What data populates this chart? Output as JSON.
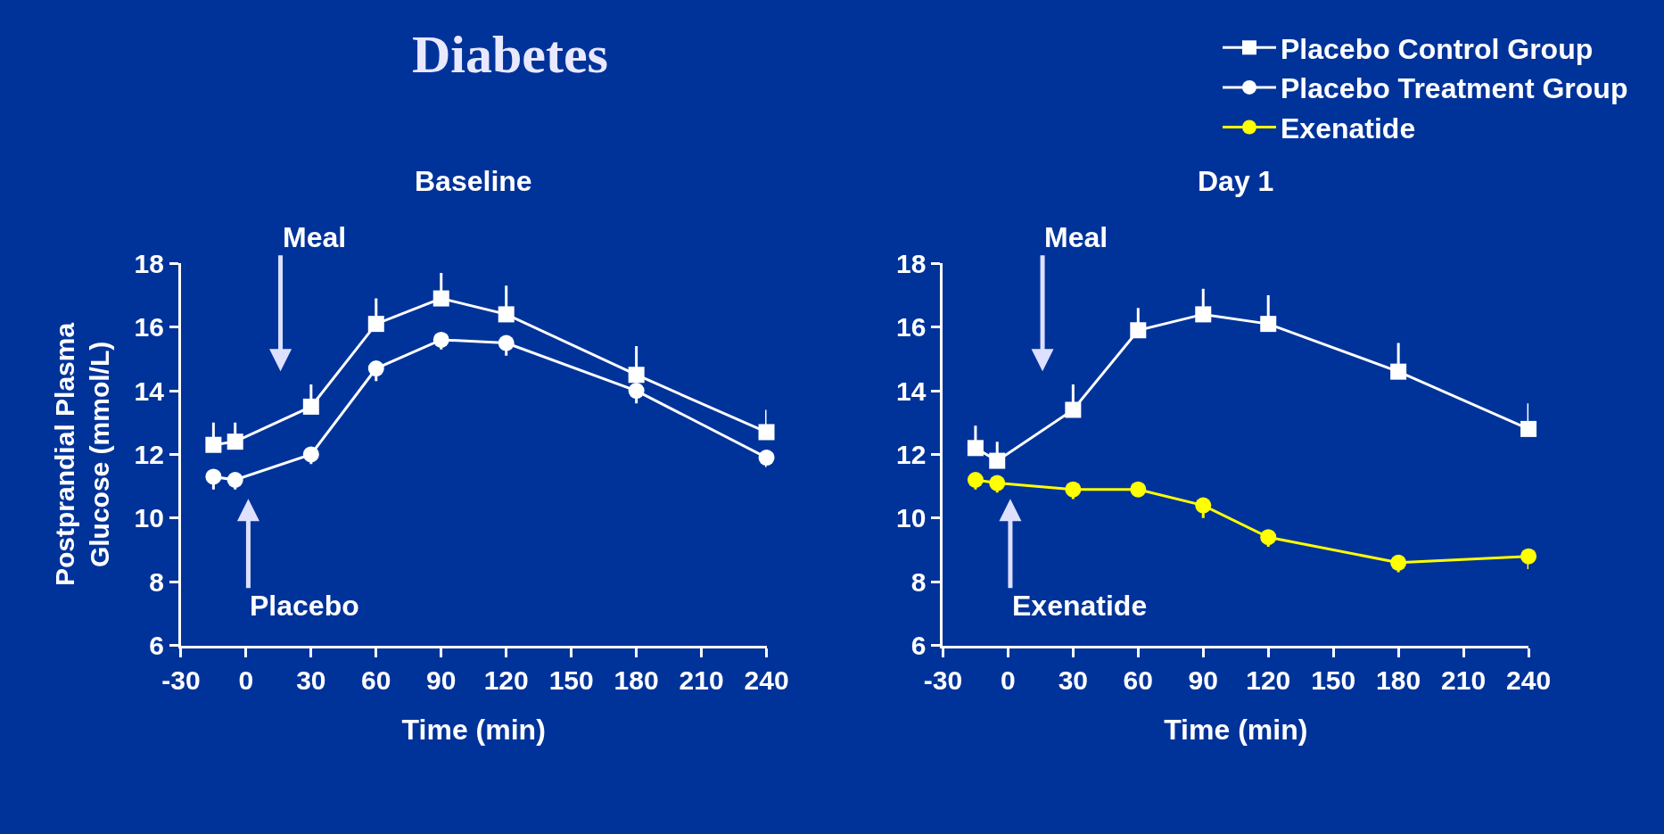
{
  "chart_data": [
    {
      "type": "line",
      "title": "Baseline",
      "xlabel": "Time (min)",
      "ylabel": "Postprandial Plasma\nGlucose (mmol/L)",
      "x": [
        -15,
        -5,
        30,
        60,
        90,
        120,
        180,
        240
      ],
      "xlim": [
        -30,
        240
      ],
      "xticks": [
        -30,
        0,
        30,
        60,
        90,
        120,
        150,
        180,
        210,
        240
      ],
      "ylim": [
        6,
        18
      ],
      "yticks": [
        6,
        8,
        10,
        12,
        14,
        16,
        18
      ],
      "grid": false,
      "legend": "top right",
      "series": [
        {
          "name": "Placebo Control Group",
          "color": "#ffffff",
          "marker": "square",
          "values": [
            12.3,
            12.4,
            13.5,
            16.1,
            16.9,
            16.4,
            14.5,
            12.7
          ],
          "errors": [
            [
              12.3,
              13.0
            ],
            [
              12.4,
              13.0
            ],
            [
              13.5,
              14.2
            ],
            [
              16.1,
              16.9
            ],
            [
              16.9,
              17.7
            ],
            [
              16.4,
              17.3
            ],
            [
              14.5,
              15.4
            ],
            [
              12.7,
              13.4
            ]
          ]
        },
        {
          "name": "Placebo Treatment Group",
          "color": "#ffffff",
          "marker": "circle",
          "values": [
            11.3,
            11.2,
            12.0,
            14.7,
            15.6,
            15.5,
            14.0,
            11.9
          ],
          "errors": [
            [
              10.9,
              11.3
            ],
            [
              10.9,
              11.2
            ],
            [
              11.7,
              12.0
            ],
            [
              14.3,
              14.7
            ],
            [
              15.3,
              15.6
            ],
            [
              15.1,
              15.5
            ],
            [
              13.6,
              14.0
            ],
            [
              11.6,
              11.9
            ]
          ]
        }
      ],
      "annotations": [
        "Diabetes",
        "Meal",
        "Placebo"
      ]
    },
    {
      "type": "line",
      "title": "Day 1",
      "xlabel": "Time (min)",
      "x": [
        -15,
        -5,
        30,
        60,
        90,
        120,
        180,
        240
      ],
      "xlim": [
        -30,
        240
      ],
      "xticks": [
        -30,
        0,
        30,
        60,
        90,
        120,
        150,
        180,
        210,
        240
      ],
      "ylim": [
        6,
        18
      ],
      "yticks": [
        6,
        8,
        10,
        12,
        14,
        16,
        18
      ],
      "grid": false,
      "legend": "top right",
      "series": [
        {
          "name": "Placebo Control Group",
          "color": "#ffffff",
          "marker": "square",
          "values": [
            12.2,
            11.8,
            13.4,
            15.9,
            16.4,
            16.1,
            14.6,
            12.8
          ],
          "errors": [
            [
              12.2,
              12.9
            ],
            [
              11.8,
              12.4
            ],
            [
              13.4,
              14.2
            ],
            [
              15.9,
              16.6
            ],
            [
              16.4,
              17.2
            ],
            [
              16.1,
              17.0
            ],
            [
              14.6,
              15.5
            ],
            [
              12.8,
              13.6
            ]
          ]
        },
        {
          "name": "Exenatide",
          "color": "#ffff00",
          "marker": "circle",
          "values": [
            11.2,
            11.1,
            10.9,
            10.9,
            10.4,
            9.4,
            8.6,
            8.8
          ],
          "errors": [
            [
              10.9,
              11.2
            ],
            [
              10.8,
              11.1
            ],
            [
              10.6,
              10.9
            ],
            [
              10.7,
              10.9
            ],
            [
              10.0,
              10.4
            ],
            [
              9.1,
              9.4
            ],
            [
              8.3,
              8.6
            ],
            [
              8.4,
              8.8
            ]
          ]
        }
      ],
      "annotations": [
        "Meal",
        "Exenatide"
      ]
    }
  ]
}
